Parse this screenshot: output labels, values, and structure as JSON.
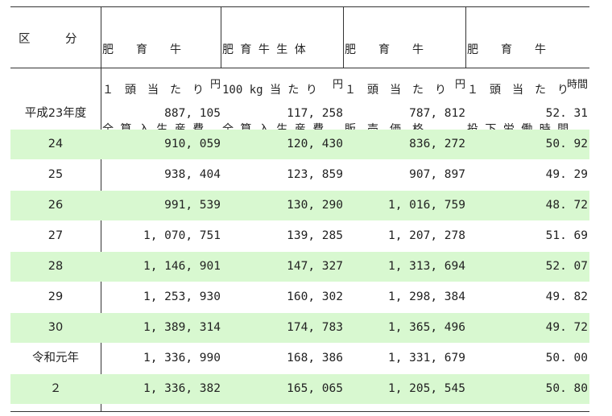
{
  "header": {
    "category": "区　　　分",
    "columns": [
      [
        "肥　　育　　牛",
        "１　頭　当　た　り",
        "全 算 入 生 産 費"
      ],
      [
        "肥 育 牛 生 体",
        "100 kg 当 た り",
        "全 算 入 生 産 費"
      ],
      [
        "肥　　育　　牛",
        "１　頭　当　た　り",
        "販　売　価　格"
      ],
      [
        "肥　　育　　牛",
        "１　頭　当　た　り",
        "投 下 労 働 時 間"
      ]
    ]
  },
  "units": [
    "円",
    "円",
    "円",
    "時間"
  ],
  "rows": [
    {
      "label": "平成23年度",
      "v": [
        "887, 105",
        "117, 258",
        "787, 812",
        "52. 31"
      ]
    },
    {
      "label": "24",
      "v": [
        "910, 059",
        "120, 430",
        "836, 272",
        "50. 92"
      ]
    },
    {
      "label": "25",
      "v": [
        "938, 404",
        "123, 859",
        "907, 897",
        "49. 29"
      ]
    },
    {
      "label": "26",
      "v": [
        "991, 539",
        "130, 290",
        "1, 016, 759",
        "48. 72"
      ]
    },
    {
      "label": "27",
      "v": [
        "1, 070, 751",
        "139, 285",
        "1, 207, 278",
        "51. 69"
      ]
    },
    {
      "label": "28",
      "v": [
        "1, 146, 901",
        "147, 327",
        "1, 313, 694",
        "52. 07"
      ]
    },
    {
      "label": "29",
      "v": [
        "1, 253, 930",
        "160, 302",
        "1, 298, 384",
        "49. 82"
      ]
    },
    {
      "label": "30",
      "v": [
        "1, 389, 314",
        "174, 783",
        "1, 365, 496",
        "49. 72"
      ]
    },
    {
      "label": "令和元年",
      "v": [
        "1, 336, 990",
        "168, 386",
        "1, 331, 679",
        "50. 00"
      ]
    },
    {
      "label": "２",
      "v": [
        "1, 336, 382",
        "165, 065",
        "1, 205, 545",
        "50. 80"
      ]
    }
  ],
  "shade_color": "#d8f8d0"
}
